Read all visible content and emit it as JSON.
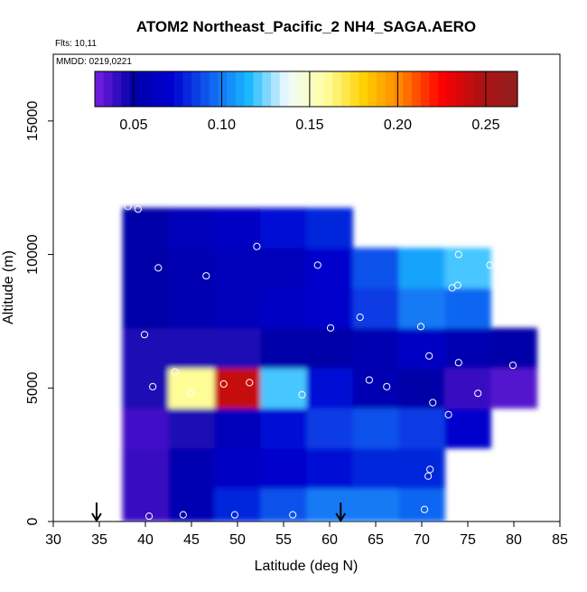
{
  "chart_data": {
    "type": "heatmap",
    "title": "ATOM2 Northeast_Pacific_2 NH4_SAGA.AERO",
    "flights_note": "Flts: 10,11",
    "date_note": "MMDD: 0219,0221",
    "xlabel": "Latitude (deg N)",
    "ylabel": "Altitude (m)",
    "xlim": [
      30,
      85
    ],
    "ylim": [
      0,
      17500
    ],
    "x_ticks": [
      "30",
      "35",
      "40",
      "45",
      "50",
      "55",
      "60",
      "65",
      "70",
      "75",
      "80",
      "85"
    ],
    "x_tick_values": [
      30,
      35,
      40,
      45,
      50,
      55,
      60,
      65,
      70,
      75,
      80,
      85
    ],
    "y_ticks": [
      "0",
      "5000",
      "10000",
      "15000"
    ],
    "y_tick_values": [
      0,
      5000,
      10000,
      15000
    ],
    "colorbar": {
      "range": [
        0.028,
        0.268
      ],
      "tick_labels": [
        "0.05",
        "0.10",
        "0.15",
        "0.20",
        "0.25"
      ],
      "tick_values": [
        0.05,
        0.1,
        0.15,
        0.2,
        0.25
      ],
      "colors": [
        "#7a1fe0",
        "#0000a8",
        "#0000d0",
        "#1060f0",
        "#18b8ff",
        "#f0faff",
        "#ffffa0",
        "#ffd000",
        "#ff8000",
        "#ff0000",
        "#b01010",
        "#902020"
      ]
    },
    "field": {
      "lat": [
        40,
        45,
        50,
        55,
        60,
        65,
        70,
        75,
        80
      ],
      "alt": [
        500,
        2000,
        3500,
        5000,
        6500,
        8000,
        9500,
        11000
      ],
      "values": [
        [
          0.04,
          0.055,
          0.08,
          0.09,
          0.1,
          0.1,
          0.095,
          null,
          null
        ],
        [
          0.04,
          0.055,
          0.065,
          0.07,
          0.075,
          0.08,
          0.08,
          null,
          null
        ],
        [
          0.038,
          0.045,
          0.06,
          0.075,
          0.085,
          0.09,
          0.085,
          0.07,
          null
        ],
        [
          0.045,
          0.16,
          0.24,
          0.12,
          0.075,
          0.055,
          0.05,
          0.04,
          0.035
        ],
        [
          0.045,
          0.045,
          0.045,
          0.05,
          0.05,
          0.055,
          0.065,
          0.055,
          0.05
        ],
        [
          0.05,
          0.055,
          0.06,
          0.065,
          0.07,
          0.085,
          0.1,
          0.095,
          null
        ],
        [
          0.05,
          0.055,
          0.06,
          0.06,
          0.07,
          0.09,
          0.11,
          0.12,
          null
        ],
        [
          0.05,
          0.06,
          0.065,
          0.075,
          0.08,
          null,
          null,
          null,
          null
        ]
      ]
    },
    "observation_points": [
      {
        "x": 40.4,
        "y": 200
      },
      {
        "x": 44.1,
        "y": 250
      },
      {
        "x": 49.7,
        "y": 250
      },
      {
        "x": 56.0,
        "y": 250
      },
      {
        "x": 70.3,
        "y": 450
      },
      {
        "x": 70.7,
        "y": 1700
      },
      {
        "x": 70.9,
        "y": 1950
      },
      {
        "x": 72.9,
        "y": 4000
      },
      {
        "x": 71.2,
        "y": 4450
      },
      {
        "x": 76.1,
        "y": 4800
      },
      {
        "x": 40.8,
        "y": 5050
      },
      {
        "x": 44.9,
        "y": 4800
      },
      {
        "x": 48.5,
        "y": 5150
      },
      {
        "x": 51.3,
        "y": 5200
      },
      {
        "x": 57.0,
        "y": 4750
      },
      {
        "x": 64.3,
        "y": 5300
      },
      {
        "x": 66.2,
        "y": 5050
      },
      {
        "x": 43.2,
        "y": 5600
      },
      {
        "x": 70.8,
        "y": 6200
      },
      {
        "x": 74.0,
        "y": 5950
      },
      {
        "x": 79.9,
        "y": 5850
      },
      {
        "x": 39.9,
        "y": 7000
      },
      {
        "x": 60.1,
        "y": 7250
      },
      {
        "x": 63.3,
        "y": 7650
      },
      {
        "x": 69.9,
        "y": 7300
      },
      {
        "x": 73.3,
        "y": 8750
      },
      {
        "x": 73.9,
        "y": 8850
      },
      {
        "x": 41.4,
        "y": 9500
      },
      {
        "x": 46.6,
        "y": 9200
      },
      {
        "x": 58.7,
        "y": 9600
      },
      {
        "x": 77.4,
        "y": 9600
      },
      {
        "x": 78.5,
        "y": 9600
      },
      {
        "x": 74.0,
        "y": 10000
      },
      {
        "x": 52.1,
        "y": 10300
      },
      {
        "x": 67.9,
        "y": 10650
      },
      {
        "x": 35.6,
        "y": 10900
      },
      {
        "x": 36.7,
        "y": 11650
      },
      {
        "x": 38.1,
        "y": 11800
      },
      {
        "x": 39.2,
        "y": 11700
      }
    ],
    "arrows": [
      {
        "x": 34.7,
        "label": ""
      },
      {
        "x": 61.2,
        "label": ""
      }
    ]
  }
}
